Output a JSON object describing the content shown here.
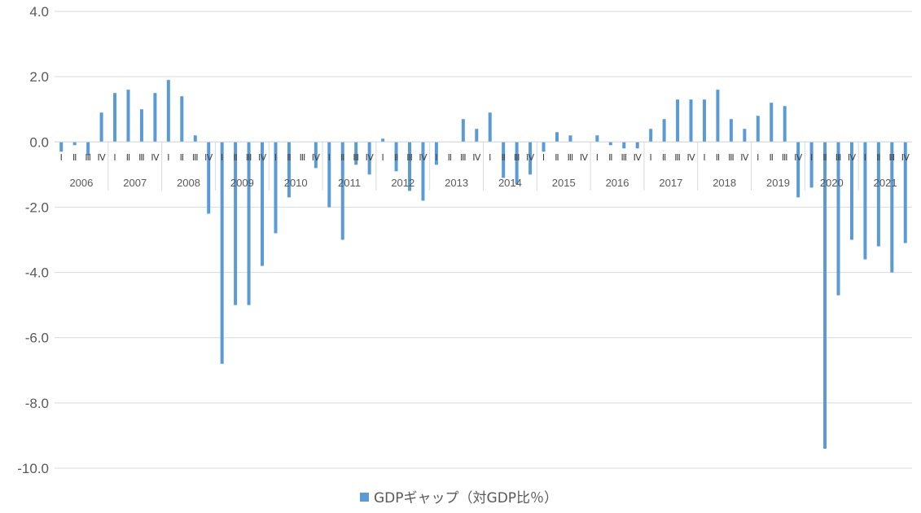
{
  "chart_data": {
    "type": "bar",
    "ylim": [
      -10,
      4
    ],
    "yticks": [
      "4.0",
      "2.0",
      "0.0",
      "-2.0",
      "-4.0",
      "-6.0",
      "-8.0",
      "-10.0"
    ],
    "ytick_values": [
      4,
      2,
      0,
      -2,
      -4,
      -6,
      -8,
      -10
    ],
    "grid": true,
    "legend_position": "bottom",
    "bar_color": "#5B9BD5",
    "quarter_labels": [
      "Ⅰ",
      "Ⅱ",
      "Ⅲ",
      "Ⅳ"
    ],
    "years": [
      "2006",
      "2007",
      "2008",
      "2009",
      "2010",
      "2011",
      "2012",
      "2013",
      "2014",
      "2015",
      "2016",
      "2017",
      "2018",
      "2019",
      "2020",
      "2021"
    ],
    "series": [
      {
        "name": "GDPギャップ（対GDP比％）",
        "values": [
          -0.3,
          -0.1,
          -0.4,
          0.9,
          1.5,
          1.6,
          1.0,
          1.5,
          1.9,
          1.4,
          0.2,
          -2.2,
          -6.8,
          -5.0,
          -5.0,
          -3.8,
          -2.8,
          -1.7,
          0.0,
          -0.8,
          -2.0,
          -3.0,
          -0.7,
          -1.0,
          0.1,
          -0.9,
          -1.5,
          -1.8,
          -0.7,
          0.0,
          0.7,
          0.4,
          0.9,
          -1.1,
          -1.3,
          -1.0,
          -0.3,
          0.3,
          0.2,
          0.0,
          0.2,
          -0.1,
          -0.2,
          -0.2,
          0.4,
          0.7,
          1.3,
          1.3,
          1.3,
          1.6,
          0.7,
          0.4,
          0.8,
          1.2,
          1.1,
          -1.7,
          -1.4,
          -9.4,
          -4.7,
          -3.0,
          -3.6,
          -3.2,
          -4.0,
          -3.1
        ]
      }
    ]
  }
}
